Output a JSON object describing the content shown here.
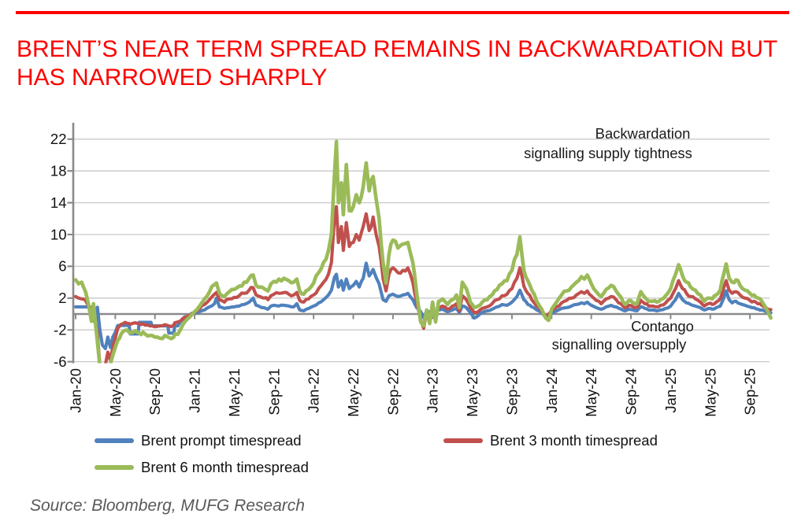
{
  "title": {
    "line1": "BRENT’S NEAR TERM SPREAD REMAINS IN BACKWARDATION BUT",
    "line2": "HAS NARROWED SHARPLY"
  },
  "source": "Source: Bloomberg, MUFG Research",
  "annotations": {
    "top": [
      "Backwardation",
      "signalling supply tightness"
    ],
    "bottom": [
      "Contango",
      "signalling oversupply"
    ]
  },
  "legend": [
    {
      "label": "Brent prompt timespread",
      "color": "#4F81BD"
    },
    {
      "label": "Brent 3 month timespread",
      "color": "#C0504D"
    },
    {
      "label": "Brent 6 month timespread",
      "color": "#9BBB59"
    }
  ],
  "colors": {
    "title_red": "#FE0000",
    "grid": "#C9C9C9",
    "axis": "#8A8A8A",
    "text": "#1A1A1A",
    "source_gray": "#595959"
  },
  "chart_data": {
    "type": "line",
    "title": "",
    "xlabel": "",
    "ylabel": "",
    "x_unit": "months since Jan-2020",
    "ylim": [
      -6,
      24
    ],
    "y_ticks": [
      22,
      18,
      14,
      10,
      6,
      2,
      -2,
      -6
    ],
    "grid": true,
    "legend_position": "bottom",
    "x_tick_labels": [
      "Jan-20",
      "May-20",
      "Sep-20",
      "Jan-21",
      "May-21",
      "Sep-21",
      "Jan-22",
      "May-22",
      "Sep-22",
      "Jan-23",
      "May-23",
      "Sep-23",
      "Jan-24",
      "May-24",
      "Sep-24",
      "Jan-25",
      "May-25",
      "Sep-25"
    ],
    "x": [
      0,
      0.3,
      0.6,
      1.0,
      1.3,
      1.6,
      1.8,
      2.0,
      2.2,
      2.45,
      2.7,
      3.0,
      3.25,
      3.5,
      3.75,
      4.0,
      4.25,
      4.6,
      5.0,
      5.4,
      5.5,
      6.0,
      6.3,
      6.4,
      7.0,
      7.5,
      7.6,
      7.7,
      8.0,
      8.5,
      9.0,
      9.3,
      9.4,
      9.9,
      10.0,
      10.3,
      10.6,
      11.0,
      11.5,
      11.7,
      12.0,
      12.5,
      13.0,
      13.5,
      14.0,
      14.2,
      14.5,
      15.0,
      15.5,
      16.0,
      16.5,
      17.0,
      17.5,
      17.9,
      18.2,
      18.6,
      19.0,
      19.4,
      19.7,
      20.0,
      20.5,
      21.0,
      21.5,
      22.0,
      22.3,
      22.6,
      23.0,
      23.5,
      24.0,
      24.5,
      25.0,
      25.5,
      25.8,
      26.1,
      26.3,
      26.5,
      26.8,
      27.0,
      27.3,
      27.6,
      28.0,
      28.3,
      28.6,
      29.0,
      29.3,
      29.6,
      30.0,
      30.3,
      30.6,
      31.0,
      31.3,
      31.6,
      32.0,
      32.5,
      33.0,
      33.5,
      34.0,
      34.4,
      34.8,
      35.1,
      35.4,
      35.7,
      36.0,
      36.3,
      36.6,
      37.0,
      37.5,
      38.0,
      38.4,
      38.7,
      39.0,
      39.4,
      39.8,
      40.2,
      40.6,
      41.0,
      41.5,
      42.0,
      42.5,
      43.0,
      43.5,
      44.0,
      44.5,
      44.8,
      45.2,
      45.6,
      46.0,
      46.5,
      47.0,
      47.4,
      47.7,
      48.0,
      48.5,
      49.0,
      49.5,
      50.0,
      50.5,
      51.0,
      51.3,
      51.6,
      52.0,
      52.5,
      53.0,
      53.5,
      54.0,
      54.5,
      55.0,
      55.4,
      55.8,
      56.2,
      56.6,
      57.0,
      57.4,
      57.8,
      58.2,
      58.6,
      59.0,
      59.5,
      60.0,
      60.5,
      60.8,
      61.2,
      61.6,
      62.0,
      62.5,
      63.0,
      63.4,
      63.8,
      64.2,
      64.6,
      65.0,
      65.35,
      65.6,
      65.9,
      66.2,
      66.6,
      67.0,
      67.5,
      68.0,
      68.4,
      68.8,
      69.2,
      69.6,
      70.1
    ],
    "series": [
      {
        "name": "Brent prompt timespread",
        "color": "#4F81BD",
        "values": [
          0.9,
          0.9,
          0.9,
          0.9,
          0.85,
          0.85,
          -0.9,
          -0.9,
          0.85,
          -2.0,
          -3.9,
          -4.35,
          -2.9,
          -4.2,
          -2.9,
          -2.3,
          -1.45,
          -1.45,
          -1.45,
          -1.45,
          -2.5,
          -2.5,
          -2.5,
          -1.05,
          -1.05,
          -1.05,
          -1.05,
          -1.5,
          -1.5,
          -1.5,
          -1.5,
          -1.5,
          -2.4,
          -2.4,
          -1.5,
          -1.5,
          -0.9,
          -0.35,
          -0.35,
          0.1,
          0.1,
          0.3,
          0.5,
          0.9,
          1.3,
          2.0,
          0.9,
          0.7,
          0.8,
          0.9,
          1.0,
          1.2,
          1.5,
          2.0,
          1.1,
          0.9,
          0.8,
          0.6,
          1.0,
          1.1,
          1.0,
          1.1,
          1.0,
          0.9,
          1.3,
          0.5,
          0.4,
          0.7,
          1.0,
          1.4,
          1.8,
          2.4,
          3.0,
          4.6,
          5.0,
          3.4,
          4.2,
          3.0,
          4.4,
          3.2,
          3.6,
          4.1,
          3.4,
          4.5,
          6.4,
          4.8,
          5.6,
          4.6,
          3.8,
          1.8,
          1.6,
          2.3,
          2.5,
          2.2,
          2.4,
          2.6,
          1.8,
          0.8,
          0.3,
          -0.5,
          0.4,
          0.2,
          0.5,
          0.2,
          0.5,
          0.6,
          0.3,
          0.5,
          0.7,
          0.2,
          1.0,
          0.8,
          0.2,
          -0.5,
          -0.2,
          0.2,
          0.4,
          0.6,
          0.9,
          1.2,
          1.1,
          1.5,
          2.2,
          3.0,
          1.8,
          1.2,
          0.9,
          0.5,
          0.2,
          -0.4,
          -0.2,
          0.1,
          0.4,
          0.7,
          0.8,
          1.0,
          1.2,
          1.4,
          1.3,
          1.5,
          1.1,
          0.8,
          0.6,
          0.9,
          1.1,
          0.9,
          0.6,
          0.4,
          0.6,
          0.5,
          0.4,
          0.9,
          0.7,
          0.5,
          0.5,
          0.4,
          0.5,
          0.7,
          1.0,
          1.8,
          2.6,
          1.8,
          1.4,
          1.2,
          1.0,
          0.8,
          0.5,
          0.7,
          0.6,
          0.8,
          1.0,
          2.0,
          2.9,
          1.8,
          1.4,
          1.6,
          1.3,
          1.1,
          0.9,
          0.8,
          0.6,
          0.5,
          0.3,
          0.15
        ]
      },
      {
        "name": "Brent 3 month timespread",
        "color": "#C0504D",
        "values": [
          2.2,
          2.0,
          1.9,
          1.7,
          1.0,
          0.7,
          0.5,
          -0.8,
          -2.5,
          -6.5,
          -6.6,
          -6.4,
          -4.8,
          -5.8,
          -4.2,
          -3.0,
          -1.8,
          -1.3,
          -1.05,
          -1.2,
          -1.3,
          -1.1,
          -1.2,
          -1.2,
          -1.4,
          -1.5,
          -1.5,
          -1.5,
          -1.6,
          -1.5,
          -1.35,
          -1.45,
          -1.5,
          -1.4,
          -1.1,
          -1.0,
          -0.85,
          -0.45,
          -0.15,
          0.0,
          0.2,
          0.7,
          1.2,
          1.8,
          2.5,
          2.7,
          1.8,
          1.5,
          1.9,
          2.1,
          2.3,
          2.6,
          3.0,
          3.3,
          2.4,
          2.2,
          2.0,
          1.8,
          2.3,
          2.5,
          2.6,
          2.7,
          2.5,
          2.4,
          2.7,
          1.7,
          1.5,
          1.9,
          2.4,
          3.2,
          4.0,
          5.0,
          6.5,
          12.0,
          13.5,
          9.0,
          11.0,
          8.0,
          11.5,
          8.5,
          9.0,
          10.0,
          9.3,
          11.0,
          12.6,
          10.5,
          12.2,
          10.0,
          8.5,
          4.5,
          2.9,
          5.0,
          5.8,
          5.2,
          5.5,
          5.8,
          4.0,
          1.5,
          -0.8,
          -1.8,
          0.3,
          -0.3,
          0.8,
          0.0,
          0.8,
          1.0,
          0.6,
          1.0,
          1.3,
          0.4,
          2.3,
          1.8,
          0.8,
          0.2,
          0.3,
          0.7,
          0.9,
          1.3,
          1.8,
          2.3,
          2.5,
          3.2,
          4.5,
          5.8,
          3.5,
          2.6,
          1.8,
          1.0,
          0.4,
          -0.2,
          0.0,
          0.4,
          0.9,
          1.4,
          1.7,
          2.0,
          2.4,
          2.8,
          2.6,
          2.9,
          2.3,
          1.7,
          1.3,
          1.9,
          2.2,
          1.8,
          1.3,
          0.8,
          1.1,
          0.9,
          0.8,
          1.7,
          1.3,
          1.0,
          1.0,
          0.9,
          1.1,
          1.4,
          2.0,
          3.2,
          4.2,
          3.2,
          2.6,
          2.2,
          1.9,
          1.5,
          1.0,
          1.3,
          1.2,
          1.5,
          1.9,
          3.3,
          4.2,
          3.0,
          2.6,
          2.8,
          2.4,
          2.0,
          1.7,
          1.6,
          1.3,
          1.1,
          0.8,
          0.55
        ]
      },
      {
        "name": "Brent 6 month timespread",
        "color": "#9BBB59",
        "values": [
          4.3,
          3.8,
          4.0,
          2.8,
          1.2,
          -0.9,
          1.3,
          -1.2,
          -3.5,
          -6.6,
          -6.6,
          -6.6,
          -6.5,
          -6.3,
          -5.2,
          -4.2,
          -3.3,
          -2.5,
          -2.05,
          -2.3,
          -2.4,
          -2.1,
          -2.35,
          -2.35,
          -2.5,
          -2.7,
          -2.7,
          -2.7,
          -2.9,
          -3.05,
          -2.7,
          -2.9,
          -2.95,
          -2.9,
          -2.5,
          -2.55,
          -1.9,
          -1.0,
          -0.4,
          -0.1,
          0.3,
          1.0,
          1.9,
          2.8,
          3.7,
          3.9,
          2.6,
          2.2,
          2.8,
          3.1,
          3.5,
          4.0,
          4.5,
          4.9,
          3.6,
          3.4,
          3.2,
          2.9,
          3.8,
          4.1,
          4.4,
          4.5,
          4.2,
          4.0,
          4.4,
          2.9,
          2.5,
          3.1,
          3.9,
          5.2,
          6.5,
          8.0,
          10.0,
          17.5,
          21.7,
          14.0,
          16.5,
          12.5,
          18.8,
          13.0,
          13.5,
          15.0,
          14.0,
          16.0,
          19.0,
          15.5,
          17.3,
          14.5,
          12.0,
          6.5,
          3.9,
          7.5,
          9.3,
          8.3,
          8.8,
          9.0,
          6.5,
          2.5,
          -1.0,
          -1.5,
          0.5,
          -1.2,
          1.5,
          -1.0,
          1.6,
          1.9,
          1.2,
          1.8,
          2.4,
          0.8,
          4.0,
          3.2,
          1.5,
          0.8,
          1.0,
          1.5,
          1.8,
          2.4,
          3.1,
          3.8,
          4.2,
          5.5,
          7.5,
          9.7,
          5.5,
          4.2,
          3.0,
          1.6,
          0.6,
          -0.5,
          -0.8,
          0.6,
          1.5,
          2.4,
          2.9,
          3.4,
          4.0,
          4.7,
          4.4,
          4.9,
          3.8,
          2.8,
          2.2,
          3.1,
          3.6,
          2.9,
          2.1,
          1.2,
          1.7,
          1.4,
          1.3,
          2.8,
          2.1,
          1.6,
          1.6,
          1.5,
          1.8,
          2.3,
          3.2,
          5.0,
          6.2,
          4.8,
          4.0,
          3.4,
          3.0,
          2.4,
          1.6,
          2.0,
          1.9,
          2.4,
          3.0,
          5.0,
          6.3,
          4.5,
          4.0,
          4.3,
          3.6,
          3.0,
          2.6,
          2.4,
          2.0,
          1.6,
          0.8,
          -0.5
        ]
      }
    ]
  }
}
